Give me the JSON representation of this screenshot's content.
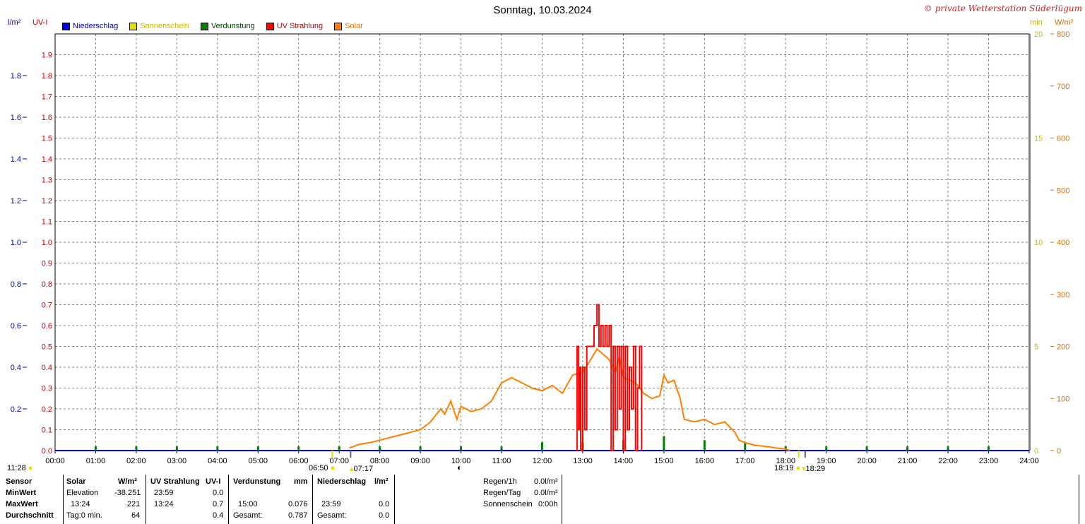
{
  "header": {
    "title": "Sonntag, 10.03.2024",
    "brand": "© private Wetterstation Süderlügum"
  },
  "units": {
    "rain": "l/m²",
    "uv": "UV-I",
    "sun": "min",
    "solar": "W/m²"
  },
  "legend": [
    {
      "label": "Niederschlag",
      "color": "#0000ff",
      "text_color": "#0000a0"
    },
    {
      "label": "Sonnenschein",
      "color": "#e0e000",
      "text_color": "#d0c000"
    },
    {
      "label": "Verdunstung",
      "color": "#008000",
      "text_color": "#004000"
    },
    {
      "label": "UV Strahlung",
      "color": "#ff0000",
      "text_color": "#c00000"
    },
    {
      "label": "Solar",
      "color": "#ff8000",
      "text_color": "#e07000"
    }
  ],
  "colors": {
    "rain": "#0000ff",
    "sun": "#e0e000",
    "evap": "#008000",
    "uv": "#ff0000",
    "solar": "#ff8000",
    "grid": "#808080"
  },
  "markers": {
    "sunrise_left": "06:50",
    "sunrise_right": "07:17",
    "sunset_left": "18:19",
    "sunset_right": "18:29",
    "moon_time": "11:28"
  },
  "chart_data": {
    "type": "line",
    "title": "Sonntag, 10.03.2024",
    "x_ticks": [
      "00:00",
      "01:00",
      "02:00",
      "03:00",
      "04:00",
      "05:00",
      "06:00",
      "07:00",
      "08:00",
      "09:00",
      "10:00",
      "11:00",
      "12:00",
      "13:00",
      "14:00",
      "15:00",
      "16:00",
      "17:00",
      "18:00",
      "19:00",
      "20:00",
      "21:00",
      "22:00",
      "23:00",
      "24:00"
    ],
    "xlim": [
      0,
      24
    ],
    "axes": {
      "rain": {
        "label": "l/m²",
        "ticks": [
          "0.2",
          "0.4",
          "0.6",
          "0.8",
          "1.0",
          "1.2",
          "1.4",
          "1.6",
          "1.8"
        ],
        "ylim": [
          0,
          2.0
        ]
      },
      "uv": {
        "label": "UV-I",
        "ticks": [
          "0.0",
          "0.1",
          "0.2",
          "0.3",
          "0.4",
          "0.5",
          "0.6",
          "0.7",
          "0.8",
          "0.9",
          "1.0",
          "1.1",
          "1.2",
          "1.3",
          "1.4",
          "1.5",
          "1.6",
          "1.7",
          "1.8",
          "1.9"
        ],
        "ylim": [
          0,
          2.0
        ]
      },
      "sun": {
        "label": "min",
        "ticks": [
          "0",
          "5",
          "10",
          "15",
          "20"
        ],
        "ylim": [
          0,
          20
        ]
      },
      "solar": {
        "label": "W/m²",
        "ticks": [
          "0",
          "100",
          "200",
          "300",
          "400",
          "500",
          "600",
          "700",
          "800"
        ],
        "ylim": [
          0,
          800
        ]
      }
    },
    "grid": true,
    "series": [
      {
        "name": "Solar",
        "axis": "solar",
        "x": [
          7.25,
          7.5,
          7.75,
          8.0,
          8.25,
          8.5,
          8.75,
          9.0,
          9.25,
          9.5,
          9.6,
          9.75,
          9.9,
          10.0,
          10.25,
          10.5,
          10.75,
          11.0,
          11.25,
          11.5,
          11.75,
          12.0,
          12.25,
          12.5,
          12.75,
          13.0,
          13.2,
          13.35,
          13.5,
          13.65,
          13.8,
          13.9,
          14.0,
          14.15,
          14.3,
          14.5,
          14.7,
          14.9,
          15.0,
          15.1,
          15.25,
          15.4,
          15.5,
          15.75,
          16.0,
          16.25,
          16.5,
          16.75,
          16.85,
          17.0,
          17.25,
          17.5,
          17.75,
          18.0,
          18.1
        ],
        "y": [
          5,
          12,
          15,
          20,
          25,
          30,
          35,
          40,
          55,
          80,
          70,
          95,
          60,
          85,
          75,
          80,
          95,
          130,
          140,
          130,
          120,
          115,
          125,
          110,
          145,
          150,
          175,
          195,
          185,
          175,
          150,
          180,
          140,
          135,
          130,
          110,
          100,
          105,
          145,
          130,
          135,
          100,
          60,
          55,
          60,
          50,
          55,
          35,
          20,
          15,
          10,
          8,
          5,
          3,
          0
        ]
      },
      {
        "name": "UV Strahlung",
        "axis": "uv",
        "x": [
          12.84,
          12.86,
          12.9,
          12.92,
          12.95,
          13.0,
          13.05,
          13.1,
          13.15,
          13.2,
          13.28,
          13.35,
          13.4,
          13.45,
          13.5,
          13.55,
          13.6,
          13.65,
          13.7,
          13.75,
          13.8,
          13.85,
          13.9,
          13.95,
          14.0,
          14.05,
          14.1,
          14.15,
          14.2,
          14.25,
          14.3,
          14.35,
          14.4,
          14.45
        ],
        "y": [
          0.0,
          0.5,
          0.1,
          0.4,
          0.0,
          0.4,
          0.1,
          0.5,
          0.5,
          0.5,
          0.6,
          0.7,
          0.5,
          0.6,
          0.5,
          0.6,
          0.5,
          0.6,
          0.0,
          0.5,
          0.1,
          0.5,
          0.2,
          0.5,
          0.0,
          0.5,
          0.1,
          0.4,
          0.2,
          0.5,
          0.0,
          0.3,
          0.5,
          0.0
        ]
      },
      {
        "name": "Verdunstung",
        "axis": "rain",
        "x": [
          1,
          2,
          3,
          4,
          5,
          6,
          7,
          8,
          9,
          10,
          11,
          12,
          13,
          14,
          15,
          16,
          17,
          18,
          19,
          20,
          21,
          22,
          23
        ],
        "y": [
          0.02,
          0.02,
          0.02,
          0.02,
          0.02,
          0.02,
          0.02,
          0.02,
          0.02,
          0.02,
          0.02,
          0.04,
          0.04,
          0.05,
          0.07,
          0.05,
          0.04,
          0.02,
          0.02,
          0.02,
          0.02,
          0.02,
          0.02
        ]
      },
      {
        "name": "Niederschlag",
        "axis": "rain",
        "x": [],
        "y": []
      }
    ]
  },
  "stats": {
    "headers": {
      "sensor": "Sensor",
      "solar": "Solar",
      "solar_unit": "W/m²",
      "uv": "UV Strahlung",
      "uv_unit": "UV-I",
      "evap": "Verdunstung",
      "evap_unit": "mm",
      "rain": "Niederschlag",
      "rain_unit": "l/m²"
    },
    "rows": {
      "min": {
        "label": "MinWert",
        "solar_time": "Elevation",
        "solar_val": "-38.251",
        "uv_time": "23:59",
        "uv_val": "0.0",
        "evap_time": "",
        "evap_val": "",
        "rain_time": "",
        "rain_val": ""
      },
      "max": {
        "label": "MaxWert",
        "solar_time": "13:24",
        "solar_val": "221",
        "uv_time": "13:24",
        "uv_val": "0.7",
        "evap_time": "15:00",
        "evap_val": "0.076",
        "rain_time": "23:59",
        "rain_val": "0.0"
      },
      "avg": {
        "label": "Durchschnitt",
        "solar_time": "Tag:0 min.",
        "solar_val": "64",
        "uv_time": "",
        "uv_val": "0.4",
        "evap_time": "Gesamt:",
        "evap_val": "0.787",
        "rain_time": "Gesamt:",
        "rain_val": "0.0"
      }
    },
    "right": {
      "rain_1h_label": "Regen/1h",
      "rain_1h_val": "0.0l/m²",
      "rain_day_label": "Regen/Tag",
      "rain_day_val": "0.0l/m²",
      "sun_label": "Sonnenschein",
      "sun_val": "0:00h"
    }
  }
}
